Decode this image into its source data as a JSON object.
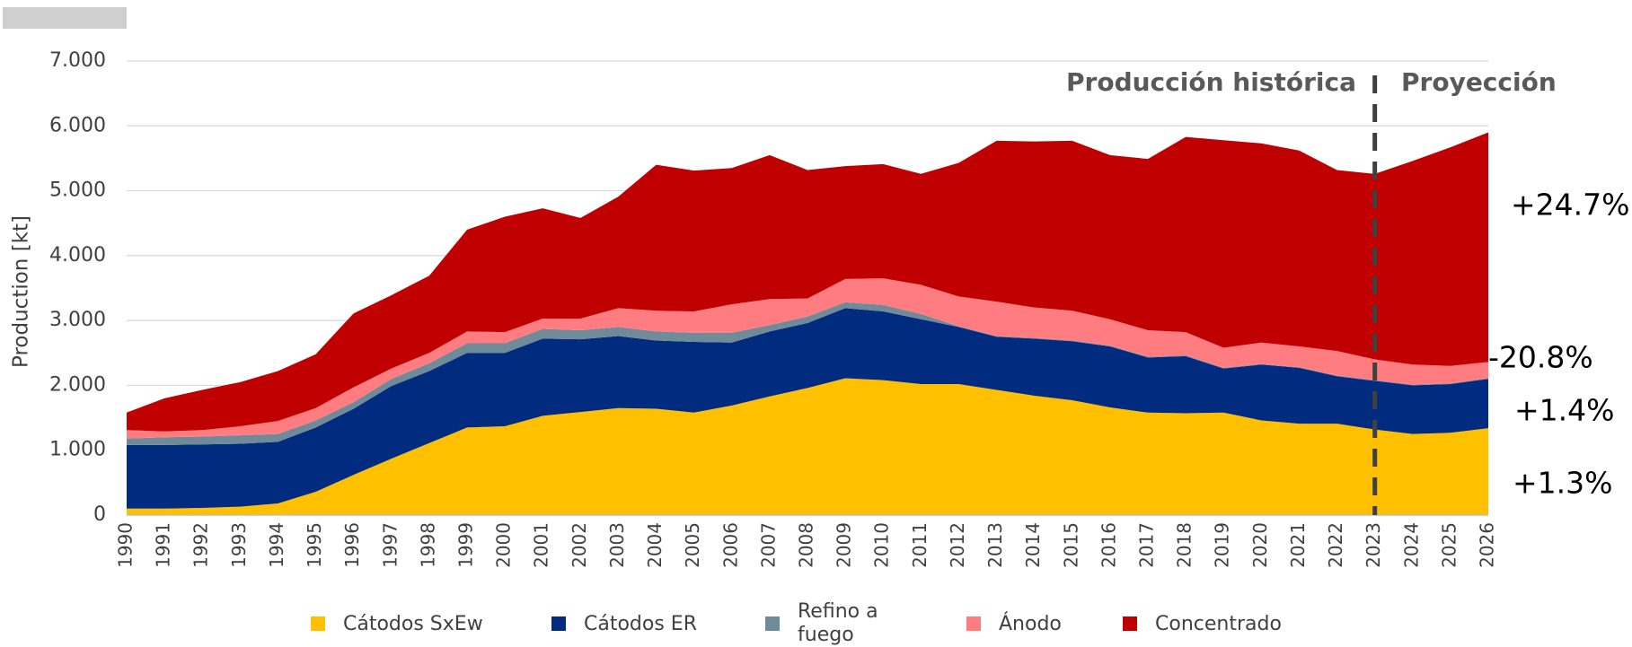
{
  "chart_data": {
    "type": "stacked_area",
    "y_axis_label": "Production [kt]",
    "categories": [
      "1990",
      "1991",
      "1992",
      "1993",
      "1994",
      "1995",
      "1996",
      "1997",
      "1998",
      "1999",
      "2000",
      "2001",
      "2002",
      "2003",
      "2004",
      "2005",
      "2006",
      "2007",
      "2008",
      "2009",
      "2010",
      "2011",
      "2012",
      "2013",
      "2014",
      "2015",
      "2016",
      "2017",
      "2018",
      "2019",
      "2020",
      "2021",
      "2022",
      "2023",
      "2024",
      "2025",
      "2026"
    ],
    "series": [
      {
        "name": "Cátodos SxEw",
        "color": "#FFC000",
        "values": [
          100,
          100,
          110,
          130,
          180,
          360,
          620,
          870,
          1110,
          1350,
          1370,
          1530,
          1590,
          1650,
          1640,
          1580,
          1690,
          1830,
          1960,
          2110,
          2080,
          2020,
          2020,
          1930,
          1840,
          1770,
          1660,
          1580,
          1570,
          1580,
          1460,
          1410,
          1410,
          1320,
          1250,
          1270,
          1340
        ]
      },
      {
        "name": "Cátodos ER",
        "color": "#002B7F",
        "values": [
          980,
          980,
          980,
          970,
          950,
          990,
          1020,
          1120,
          1110,
          1150,
          1130,
          1190,
          1120,
          1110,
          1050,
          1090,
          970,
          1000,
          1000,
          1080,
          1060,
          1000,
          880,
          820,
          880,
          910,
          940,
          850,
          880,
          680,
          860,
          860,
          730,
          750,
          750,
          750,
          760
        ]
      },
      {
        "name": "Refino a fuego",
        "color": "#6F8A99",
        "values": [
          100,
          120,
          120,
          130,
          120,
          110,
          100,
          110,
          120,
          150,
          150,
          150,
          140,
          140,
          140,
          140,
          150,
          100,
          100,
          90,
          100,
          80,
          10,
          10,
          10,
          10,
          10,
          10,
          10,
          10,
          10,
          10,
          10,
          10,
          10,
          10,
          10
        ]
      },
      {
        "name": "Ánodo",
        "color": "#FF7C80",
        "values": [
          130,
          90,
          100,
          140,
          200,
          190,
          230,
          160,
          160,
          180,
          170,
          160,
          180,
          290,
          320,
          330,
          440,
          400,
          280,
          360,
          410,
          450,
          460,
          530,
          470,
          460,
          410,
          410,
          360,
          310,
          330,
          320,
          380,
          320,
          310,
          270,
          250
        ]
      },
      {
        "name": "Concentrado",
        "color": "#C00000",
        "values": [
          270,
          510,
          620,
          680,
          770,
          830,
          1140,
          1130,
          1190,
          1570,
          1780,
          1700,
          1550,
          1720,
          2250,
          2170,
          2100,
          2220,
          1980,
          1740,
          1760,
          1710,
          2060,
          2480,
          2560,
          2620,
          2530,
          2640,
          3010,
          3200,
          3070,
          3020,
          2790,
          2860,
          3140,
          3370,
          3540
        ]
      }
    ],
    "ylim": [
      0,
      7000
    ],
    "yticks": [
      0,
      {
        "value": 1000,
        "label": "1.000"
      },
      {
        "value": 2000,
        "label": "2.000"
      },
      {
        "value": 3000,
        "label": "3.000"
      },
      {
        "value": 4000,
        "label": "4.000"
      },
      {
        "value": 5000,
        "label": "5.000"
      },
      {
        "value": 6000,
        "label": "6.000"
      },
      {
        "value": 7000,
        "label": "7.000"
      }
    ],
    "grid": true,
    "annotations": {
      "historical": "Producción histórica",
      "projection": "Proyección"
    },
    "change_labels": [
      "+24.7%",
      "-20.8%",
      "+1.4%",
      "+1.3%"
    ]
  }
}
